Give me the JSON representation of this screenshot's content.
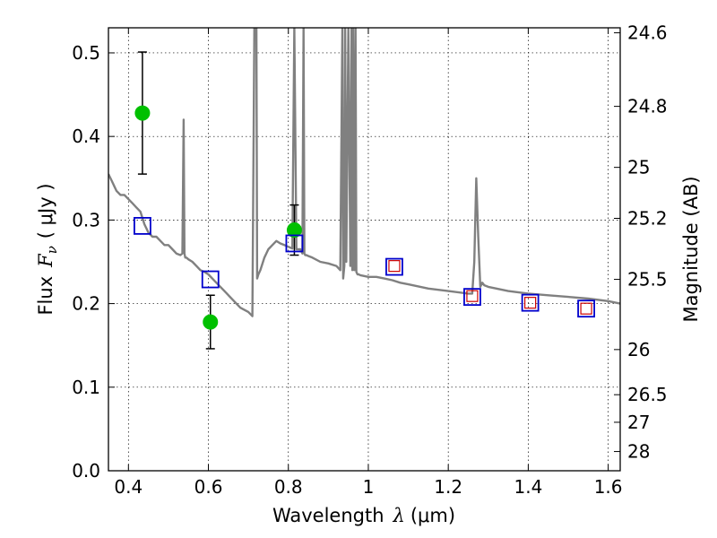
{
  "chart_data": {
    "type": "scatter",
    "xlabel": "Wavelength",
    "xlabel_math": "λ",
    "xlabel_unit": "(μm)",
    "ylabel": "Flux",
    "ylabel_math": "F",
    "ylabel_math_sub": "ν",
    "ylabel_unit": "( μJy )",
    "ylabel_right": "Magnitude (AB)",
    "xlim": [
      0.35,
      1.63
    ],
    "ylim": [
      0.0,
      0.53
    ],
    "x_ticks": [
      0.4,
      0.6,
      0.8,
      1.0,
      1.2,
      1.4,
      1.6
    ],
    "x_tick_labels": [
      "0.4",
      "0.6",
      "0.8",
      "1",
      "1.2",
      "1.4",
      "1.6"
    ],
    "y_ticks": [
      0.0,
      0.1,
      0.2,
      0.3,
      0.4,
      0.5
    ],
    "y_tick_labels": [
      "0.0",
      "0.1",
      "0.2",
      "0.3",
      "0.4",
      "0.5"
    ],
    "right_ticks": [
      {
        "label": "24.6",
        "flux": 0.524
      },
      {
        "label": "24.8",
        "flux": 0.436
      },
      {
        "label": "25",
        "flux": 0.363
      },
      {
        "label": "25.2",
        "flux": 0.302
      },
      {
        "label": "25.5",
        "flux": 0.229
      },
      {
        "label": "26",
        "flux": 0.145
      },
      {
        "label": "26.5",
        "flux": 0.091
      },
      {
        "label": "27",
        "flux": 0.058
      },
      {
        "label": "28",
        "flux": 0.023
      }
    ],
    "grid": true,
    "colors": {
      "model": "#808080",
      "photometry": "#00c000",
      "model_box": "#0000cc",
      "observed_box": "#cc0000"
    },
    "series": [
      {
        "type": "line",
        "x": [
          0.35,
          0.36,
          0.37,
          0.38,
          0.39,
          0.4,
          0.41,
          0.42,
          0.43,
          0.44,
          0.45,
          0.46,
          0.47,
          0.48,
          0.49,
          0.5,
          0.51,
          0.52,
          0.53,
          0.535,
          0.538,
          0.54,
          0.542,
          0.545,
          0.55,
          0.56,
          0.57,
          0.58,
          0.59,
          0.6,
          0.62,
          0.64,
          0.66,
          0.68,
          0.7,
          0.71,
          0.715,
          0.718,
          0.72,
          0.722,
          0.725,
          0.73,
          0.74,
          0.75,
          0.76,
          0.77,
          0.78,
          0.79,
          0.8,
          0.81,
          0.815,
          0.82,
          0.83,
          0.835,
          0.838,
          0.84,
          0.842,
          0.845,
          0.85,
          0.86,
          0.88,
          0.9,
          0.92,
          0.93,
          0.935,
          0.937,
          0.94,
          0.942,
          0.945,
          0.95,
          0.955,
          0.958,
          0.96,
          0.962,
          0.965,
          0.968,
          0.97,
          0.973,
          0.976,
          0.98,
          1.0,
          1.02,
          1.04,
          1.06,
          1.08,
          1.1,
          1.15,
          1.2,
          1.25,
          1.26,
          1.265,
          1.27,
          1.275,
          1.28,
          1.285,
          1.29,
          1.3,
          1.35,
          1.4,
          1.45,
          1.5,
          1.55,
          1.6,
          1.63
        ],
        "y": [
          0.355,
          0.345,
          0.335,
          0.33,
          0.33,
          0.325,
          0.32,
          0.315,
          0.31,
          0.295,
          0.285,
          0.28,
          0.28,
          0.275,
          0.27,
          0.27,
          0.265,
          0.26,
          0.258,
          0.26,
          0.42,
          0.26,
          0.255,
          0.255,
          0.253,
          0.25,
          0.245,
          0.24,
          0.238,
          0.235,
          0.225,
          0.215,
          0.205,
          0.195,
          0.19,
          0.185,
          0.53,
          0.53,
          0.53,
          0.23,
          0.235,
          0.24,
          0.255,
          0.265,
          0.27,
          0.275,
          0.272,
          0.27,
          0.268,
          0.266,
          0.53,
          0.265,
          0.265,
          0.26,
          0.53,
          0.26,
          0.258,
          0.258,
          0.257,
          0.255,
          0.25,
          0.248,
          0.245,
          0.24,
          0.53,
          0.23,
          0.245,
          0.53,
          0.25,
          0.53,
          0.245,
          0.53,
          0.24,
          0.53,
          0.24,
          0.53,
          0.238,
          0.235,
          0.235,
          0.234,
          0.232,
          0.232,
          0.23,
          0.228,
          0.225,
          0.223,
          0.218,
          0.215,
          0.212,
          0.212,
          0.25,
          0.35,
          0.28,
          0.22,
          0.225,
          0.222,
          0.22,
          0.215,
          0.212,
          0.21,
          0.208,
          0.206,
          0.203,
          0.2
        ]
      },
      {
        "type": "errorbar",
        "x": [
          0.435,
          0.605,
          0.815
        ],
        "y": [
          0.428,
          0.178,
          0.288
        ],
        "yerr": [
          0.073,
          0.032,
          0.03
        ]
      },
      {
        "type": "square_model",
        "x": [
          0.435,
          0.605,
          0.815,
          1.065,
          1.26,
          1.405,
          1.545
        ],
        "y": [
          0.293,
          0.229,
          0.272,
          0.244,
          0.208,
          0.201,
          0.194
        ]
      },
      {
        "type": "square_observed",
        "x": [
          1.065,
          1.26,
          1.405,
          1.545
        ],
        "y": [
          0.245,
          0.209,
          0.201,
          0.194
        ]
      }
    ]
  }
}
